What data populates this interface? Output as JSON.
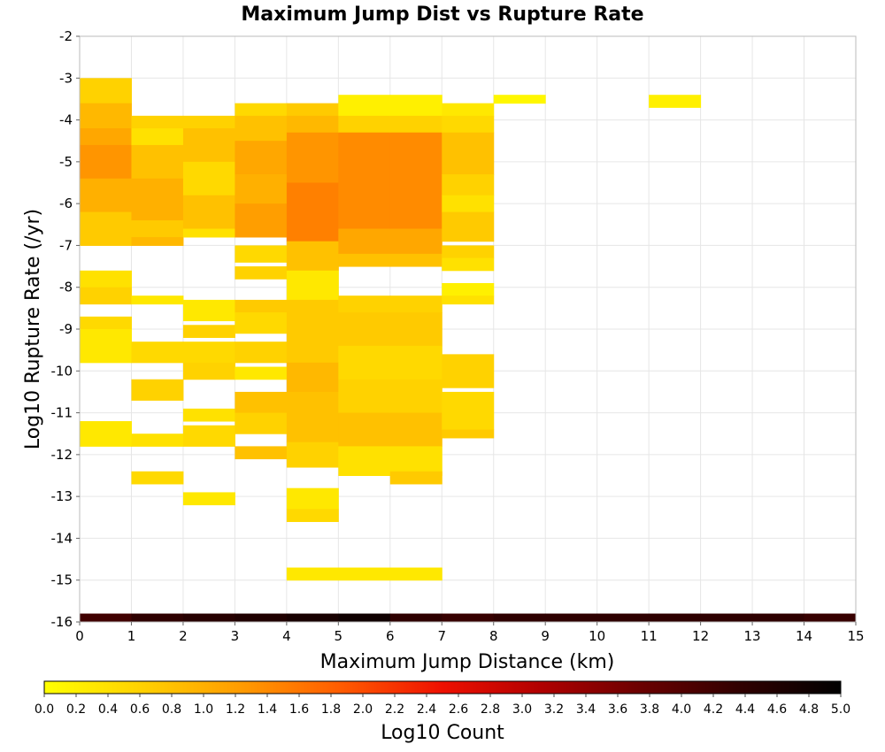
{
  "chart_data": {
    "type": "heatmap",
    "title": "Maximum Jump Dist vs Rupture Rate",
    "xlabel": "Maximum Jump Distance (km)",
    "ylabel": "Log10 Rupture Rate (/yr)",
    "xlim": [
      0,
      15
    ],
    "ylim": [
      -16,
      -2
    ],
    "x_ticks": [
      "0",
      "1",
      "2",
      "3",
      "4",
      "5",
      "6",
      "7",
      "8",
      "9",
      "10",
      "11",
      "12",
      "13",
      "14",
      "15"
    ],
    "y_ticks": [
      "-16",
      "-15",
      "-14",
      "-13",
      "-12",
      "-11",
      "-10",
      "-9",
      "-8",
      "-7",
      "-6",
      "-5",
      "-4",
      "-3",
      "-2"
    ],
    "grid": true,
    "x_bin_width": 1,
    "y_bin_height": 0.2,
    "colorbar": {
      "label": "Log10 Count",
      "min": 0.0,
      "max": 5.0,
      "ticks": [
        "0.0",
        "0.2",
        "0.4",
        "0.6",
        "0.8",
        "1.0",
        "1.2",
        "1.4",
        "1.6",
        "1.8",
        "2.0",
        "2.2",
        "2.4",
        "2.6",
        "2.8",
        "3.0",
        "3.2",
        "3.4",
        "3.6",
        "3.8",
        "4.0",
        "4.2",
        "4.4",
        "4.6",
        "4.8",
        "5.0"
      ],
      "colors": [
        "#ffff00",
        "#ffd000",
        "#ff9a00",
        "#ff5a00",
        "#ee1000",
        "#b00000",
        "#6a0000",
        "#300000",
        "#000000"
      ]
    },
    "bottom_row": {
      "y": -15.9,
      "values": [
        4.2,
        4.4,
        4.5,
        4.6,
        4.7,
        4.8,
        4.4,
        4.3,
        4.4,
        4.4,
        4.4,
        4.4,
        4.4,
        4.4,
        4.3
      ]
    },
    "columns": [
      {
        "x": 0,
        "ranges": [
          [
            -3.6,
            -3.0,
            0.6
          ],
          [
            -4.2,
            -3.6,
            0.9
          ],
          [
            -4.6,
            -4.2,
            1.1
          ],
          [
            -5.4,
            -4.6,
            1.3
          ],
          [
            -6.2,
            -5.4,
            1.0
          ],
          [
            -7.0,
            -6.2,
            0.7
          ],
          [
            -8.0,
            -7.6,
            0.4
          ],
          [
            -8.4,
            -8.0,
            0.6
          ],
          [
            -9.0,
            -8.7,
            0.5
          ],
          [
            -9.8,
            -9.0,
            0.3
          ],
          [
            -11.8,
            -11.2,
            0.3
          ]
        ]
      },
      {
        "x": 1,
        "ranges": [
          [
            -4.2,
            -3.9,
            0.6
          ],
          [
            -4.6,
            -4.2,
            0.4
          ],
          [
            -5.4,
            -4.6,
            0.8
          ],
          [
            -6.4,
            -5.4,
            1.0
          ],
          [
            -6.8,
            -6.4,
            0.7
          ],
          [
            -7.0,
            -6.8,
            0.9
          ],
          [
            -8.4,
            -8.2,
            0.3
          ],
          [
            -9.8,
            -9.3,
            0.5
          ],
          [
            -10.7,
            -10.2,
            0.6
          ],
          [
            -11.8,
            -11.5,
            0.4
          ],
          [
            -12.7,
            -12.4,
            0.5
          ]
        ]
      },
      {
        "x": 2,
        "ranges": [
          [
            -4.2,
            -3.9,
            0.6
          ],
          [
            -5.0,
            -4.2,
            0.8
          ],
          [
            -5.8,
            -5.0,
            0.5
          ],
          [
            -6.6,
            -5.8,
            0.8
          ],
          [
            -6.8,
            -6.6,
            0.4
          ],
          [
            -8.8,
            -8.3,
            0.3
          ],
          [
            -9.2,
            -8.9,
            0.6
          ],
          [
            -9.8,
            -9.3,
            0.5
          ],
          [
            -10.2,
            -9.8,
            0.6
          ],
          [
            -11.2,
            -10.9,
            0.4
          ],
          [
            -11.8,
            -11.3,
            0.5
          ],
          [
            -13.2,
            -12.9,
            0.3
          ]
        ]
      },
      {
        "x": 3,
        "ranges": [
          [
            -3.9,
            -3.6,
            0.5
          ],
          [
            -4.5,
            -3.9,
            0.8
          ],
          [
            -5.3,
            -4.5,
            1.1
          ],
          [
            -6.0,
            -5.3,
            1.0
          ],
          [
            -6.8,
            -6.0,
            1.2
          ],
          [
            -7.4,
            -7.0,
            0.5
          ],
          [
            -7.8,
            -7.5,
            0.6
          ],
          [
            -8.6,
            -8.3,
            0.7
          ],
          [
            -9.1,
            -8.6,
            0.5
          ],
          [
            -9.8,
            -9.3,
            0.6
          ],
          [
            -10.2,
            -9.9,
            0.3
          ],
          [
            -11.0,
            -10.5,
            0.8
          ],
          [
            -11.5,
            -11.0,
            0.6
          ],
          [
            -12.1,
            -11.8,
            0.8
          ]
        ]
      },
      {
        "x": 4,
        "ranges": [
          [
            -3.9,
            -3.6,
            0.7
          ],
          [
            -4.3,
            -3.9,
            0.9
          ],
          [
            -5.5,
            -4.3,
            1.3
          ],
          [
            -6.9,
            -5.5,
            1.5
          ],
          [
            -7.6,
            -6.9,
            0.8
          ],
          [
            -8.3,
            -7.6,
            0.3
          ],
          [
            -9.8,
            -8.3,
            0.7
          ],
          [
            -10.5,
            -9.8,
            0.9
          ],
          [
            -11.7,
            -10.5,
            0.8
          ],
          [
            -12.3,
            -11.7,
            0.6
          ],
          [
            -13.3,
            -12.8,
            0.3
          ],
          [
            -13.6,
            -13.3,
            0.5
          ],
          [
            -15.0,
            -14.7,
            0.3
          ]
        ]
      },
      {
        "x": 5,
        "ranges": [
          [
            -3.9,
            -3.4,
            0.2
          ],
          [
            -4.3,
            -3.9,
            0.6
          ],
          [
            -6.6,
            -4.3,
            1.4
          ],
          [
            -7.2,
            -6.6,
            1.1
          ],
          [
            -7.5,
            -7.2,
            0.8
          ],
          [
            -8.6,
            -8.2,
            0.6
          ],
          [
            -9.4,
            -8.6,
            0.7
          ],
          [
            -10.2,
            -9.4,
            0.5
          ],
          [
            -11.0,
            -10.2,
            0.6
          ],
          [
            -11.8,
            -11.0,
            0.8
          ],
          [
            -12.5,
            -11.8,
            0.4
          ],
          [
            -15.0,
            -14.7,
            0.3
          ]
        ]
      },
      {
        "x": 6,
        "ranges": [
          [
            -3.9,
            -3.4,
            0.2
          ],
          [
            -4.3,
            -3.9,
            0.6
          ],
          [
            -6.6,
            -4.3,
            1.4
          ],
          [
            -7.2,
            -6.6,
            1.1
          ],
          [
            -7.5,
            -7.2,
            0.8
          ],
          [
            -8.6,
            -8.2,
            0.6
          ],
          [
            -9.4,
            -8.6,
            0.7
          ],
          [
            -10.2,
            -9.4,
            0.5
          ],
          [
            -11.0,
            -10.2,
            0.6
          ],
          [
            -11.8,
            -11.0,
            0.8
          ],
          [
            -12.5,
            -11.8,
            0.4
          ],
          [
            -12.7,
            -12.4,
            0.7
          ],
          [
            -15.0,
            -14.7,
            0.3
          ]
        ]
      },
      {
        "x": 7,
        "ranges": [
          [
            -3.9,
            -3.6,
            0.3
          ],
          [
            -4.3,
            -3.9,
            0.5
          ],
          [
            -5.3,
            -4.3,
            0.8
          ],
          [
            -5.8,
            -5.3,
            0.6
          ],
          [
            -6.2,
            -5.8,
            0.4
          ],
          [
            -6.9,
            -6.2,
            0.7
          ],
          [
            -7.3,
            -7.0,
            0.6
          ],
          [
            -7.6,
            -7.3,
            0.4
          ],
          [
            -8.2,
            -7.9,
            0.2
          ],
          [
            -8.4,
            -8.2,
            0.4
          ],
          [
            -10.4,
            -9.6,
            0.6
          ],
          [
            -11.4,
            -10.5,
            0.5
          ],
          [
            -11.6,
            -11.4,
            0.7
          ]
        ]
      },
      {
        "x": 8,
        "ranges": [
          [
            -3.6,
            -3.4,
            0.1
          ]
        ]
      },
      {
        "x": 11,
        "ranges": [
          [
            -3.7,
            -3.4,
            0.2
          ]
        ]
      }
    ]
  }
}
